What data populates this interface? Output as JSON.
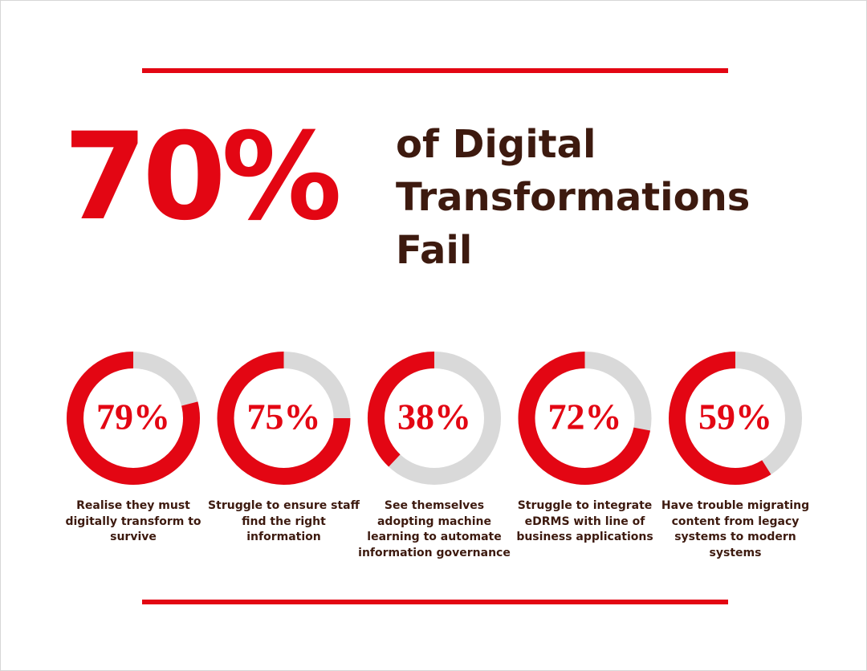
{
  "headline": "70%",
  "headline_text": [
    "of Digital",
    "Transformations",
    "Fail"
  ],
  "chart_data": {
    "type": "donut",
    "values": [
      79,
      75,
      38,
      72,
      59
    ],
    "value_labels": [
      "79%",
      "75%",
      "38%",
      "72%",
      "59%"
    ],
    "categories": [
      "Realise they must digitally transform to survive",
      "Struggle to ensure staff find the right information",
      "See themselves adopting machine learning to automate information governance",
      "Struggle to integrate eDRMS with line of business applications",
      "Have trouble migrating content from legacy systems to modern systems"
    ],
    "color": "#e30613",
    "track_color": "#d9d9d9"
  }
}
